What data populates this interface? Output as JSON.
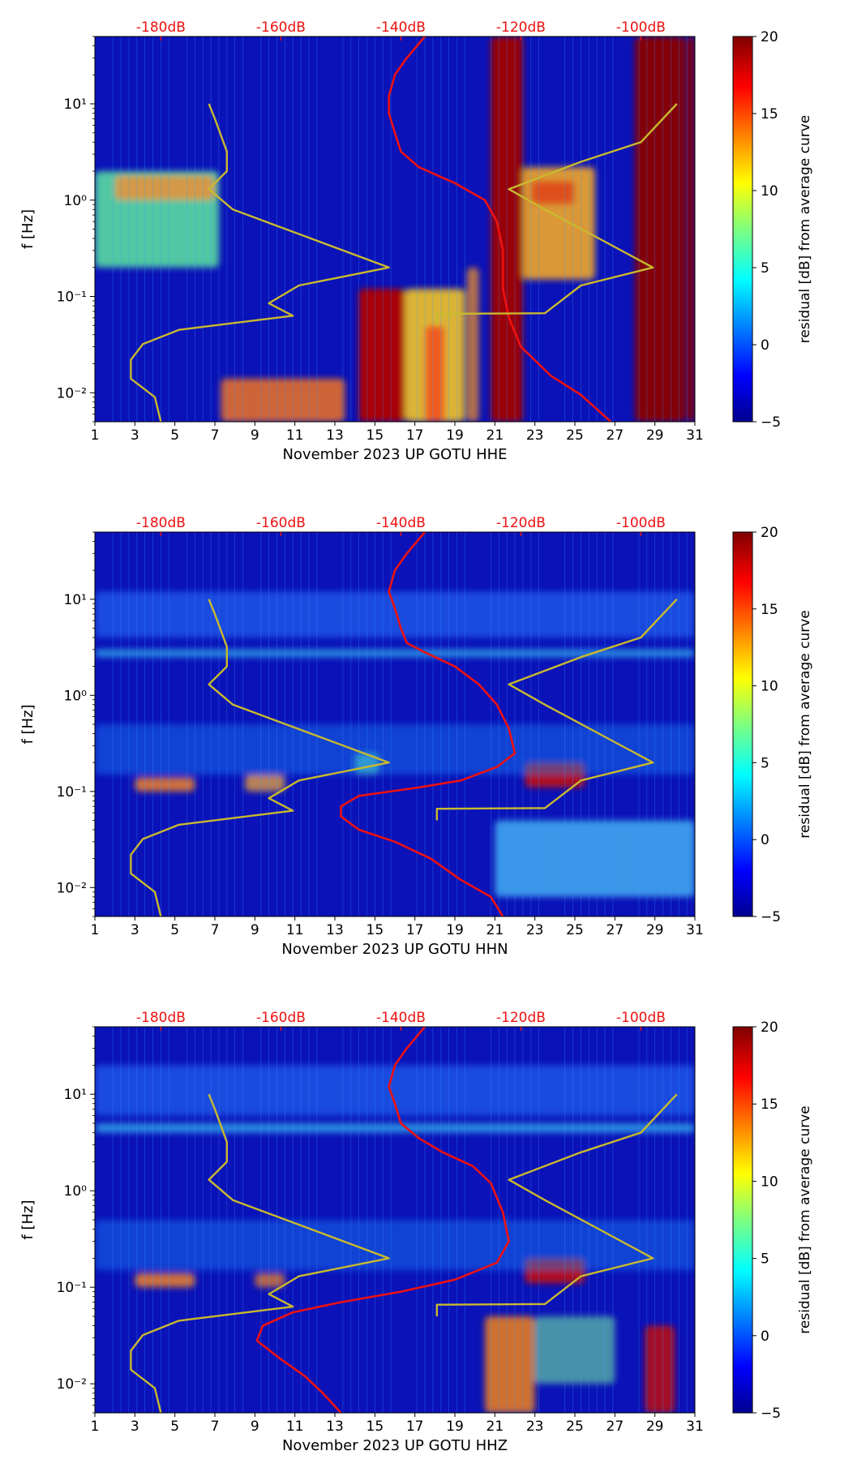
{
  "chart_data": [
    {
      "type": "heatmap",
      "station": "November 2023 UP GOTU  HHE",
      "xlabel": "November 2023 UP GOTU  HHE",
      "ylabel": "f [Hz]",
      "x_ticks": [
        "1",
        "3",
        "5",
        "7",
        "9",
        "11",
        "13",
        "15",
        "17",
        "19",
        "21",
        "23",
        "25",
        "27",
        "29",
        "31"
      ],
      "xlim": [
        1,
        31
      ],
      "y_ticks": [
        "10⁻²",
        "10⁻¹",
        "10⁰",
        "10¹"
      ],
      "y_tick_values": [
        0.01,
        0.1,
        1,
        10
      ],
      "ylim": [
        0.005,
        50
      ],
      "top_ticks": [
        "-180dB",
        "-160dB",
        "-140dB",
        "-120dB",
        "-100dB"
      ],
      "top_tick_values": [
        -180,
        -160,
        -140,
        -120,
        -100
      ],
      "top_xlim": [
        -191,
        -91
      ],
      "colorbar": {
        "label": "residual [dB] from average curve",
        "ticks": [
          "20",
          "15",
          "10",
          "5",
          "0",
          "−5"
        ],
        "tick_values": [
          20,
          15,
          10,
          5,
          0,
          -5
        ],
        "range": [
          -5,
          20
        ]
      },
      "series": [
        {
          "name": "median PSD (dB)",
          "color": "#ee1111",
          "points": [
            [
              -136,
              50
            ],
            [
              -139,
              30
            ],
            [
              -141,
              20
            ],
            [
              -142,
              12
            ],
            [
              -142,
              8
            ],
            [
              -141,
              5
            ],
            [
              -140,
              3.2
            ],
            [
              -137,
              2.2
            ],
            [
              -131,
              1.5
            ],
            [
              -126,
              1.0
            ],
            [
              -124,
              0.6
            ],
            [
              -123,
              0.3
            ],
            [
              -123,
              0.12
            ],
            [
              -122,
              0.06
            ],
            [
              -120,
              0.03
            ],
            [
              -115,
              0.015
            ],
            [
              -110,
              0.0095
            ],
            [
              -105,
              0.005
            ]
          ]
        },
        {
          "name": "NLNM / NHNM (dB)",
          "color": "#c9b92e",
          "points": [
            [
              -180,
              0.005
            ],
            [
              -181,
              0.009
            ],
            [
              -185,
              0.014
            ],
            [
              -185,
              0.022
            ],
            [
              -183,
              0.032
            ],
            [
              -177,
              0.045
            ],
            [
              -158,
              0.063
            ],
            [
              -162,
              0.085
            ],
            [
              -157,
              0.13
            ],
            [
              -142,
              0.2
            ],
            [
              -155,
              0.4
            ],
            [
              -168,
              0.8
            ],
            [
              -172,
              1.3
            ],
            [
              -169,
              2.0
            ],
            [
              -169,
              3.2
            ],
            [
              -171,
              7.0
            ],
            [
              -172,
              10.0
            ]
          ]
        },
        {
          "name": "NHNM (dB)",
          "color": "#c9b92e",
          "points": [
            [
              -134,
              0.05
            ],
            [
              -134,
              0.066
            ],
            [
              -116,
              0.067
            ],
            [
              -110,
              0.13
            ],
            [
              -98,
              0.2
            ],
            [
              -107,
              0.4
            ],
            [
              -116,
              0.8
            ],
            [
              -122,
              1.3
            ],
            [
              -110,
              2.5
            ],
            [
              -100,
              4.0
            ],
            [
              -94,
              10.0
            ]
          ]
        }
      ]
    },
    {
      "type": "heatmap",
      "station": "November 2023 UP GOTU  HHN",
      "xlabel": "November 2023 UP GOTU  HHN",
      "ylabel": "f [Hz]",
      "x_ticks": [
        "1",
        "3",
        "5",
        "7",
        "9",
        "11",
        "13",
        "15",
        "17",
        "19",
        "21",
        "23",
        "25",
        "27",
        "29",
        "31"
      ],
      "xlim": [
        1,
        31
      ],
      "y_ticks": [
        "10⁻²",
        "10⁻¹",
        "10⁰",
        "10¹"
      ],
      "y_tick_values": [
        0.01,
        0.1,
        1,
        10
      ],
      "ylim": [
        0.005,
        50
      ],
      "top_ticks": [
        "-180dB",
        "-160dB",
        "-140dB",
        "-120dB",
        "-100dB"
      ],
      "top_tick_values": [
        -180,
        -160,
        -140,
        -120,
        -100
      ],
      "top_xlim": [
        -191,
        -91
      ],
      "colorbar": {
        "label": "residual [dB] from average curve",
        "ticks": [
          "20",
          "15",
          "10",
          "5",
          "0",
          "−5"
        ],
        "tick_values": [
          20,
          15,
          10,
          5,
          0,
          -5
        ],
        "range": [
          -5,
          20
        ]
      },
      "series": [
        {
          "name": "median PSD (dB)",
          "color": "#ee1111",
          "points": [
            [
              -136,
              50
            ],
            [
              -139,
              30
            ],
            [
              -141,
              20
            ],
            [
              -142,
              12
            ],
            [
              -141,
              8
            ],
            [
              -140,
              5
            ],
            [
              -139,
              3.5
            ],
            [
              -136,
              2.8
            ],
            [
              -131,
              2.0
            ],
            [
              -127,
              1.3
            ],
            [
              -124,
              0.8
            ],
            [
              -122,
              0.45
            ],
            [
              -121,
              0.25
            ],
            [
              -124,
              0.18
            ],
            [
              -130,
              0.13
            ],
            [
              -137,
              0.11
            ],
            [
              -147,
              0.09
            ],
            [
              -150,
              0.07
            ],
            [
              -150,
              0.055
            ],
            [
              -147,
              0.04
            ],
            [
              -141,
              0.03
            ],
            [
              -135,
              0.02
            ],
            [
              -130,
              0.012
            ],
            [
              -125,
              0.008
            ],
            [
              -123,
              0.005
            ]
          ]
        },
        {
          "name": "NLNM / NHNM (dB)",
          "color": "#c9b92e",
          "points": [
            [
              -180,
              0.005
            ],
            [
              -181,
              0.009
            ],
            [
              -185,
              0.014
            ],
            [
              -185,
              0.022
            ],
            [
              -183,
              0.032
            ],
            [
              -177,
              0.045
            ],
            [
              -158,
              0.063
            ],
            [
              -162,
              0.085
            ],
            [
              -157,
              0.13
            ],
            [
              -142,
              0.2
            ],
            [
              -155,
              0.4
            ],
            [
              -168,
              0.8
            ],
            [
              -172,
              1.3
            ],
            [
              -169,
              2.0
            ],
            [
              -169,
              3.2
            ],
            [
              -171,
              7.0
            ],
            [
              -172,
              10.0
            ]
          ]
        },
        {
          "name": "NHNM (dB)",
          "color": "#c9b92e",
          "points": [
            [
              -134,
              0.05
            ],
            [
              -134,
              0.066
            ],
            [
              -116,
              0.067
            ],
            [
              -110,
              0.13
            ],
            [
              -98,
              0.2
            ],
            [
              -107,
              0.4
            ],
            [
              -116,
              0.8
            ],
            [
              -122,
              1.3
            ],
            [
              -110,
              2.5
            ],
            [
              -100,
              4.0
            ],
            [
              -94,
              10.0
            ]
          ]
        }
      ]
    },
    {
      "type": "heatmap",
      "station": "November 2023 UP GOTU  HHZ",
      "xlabel": "November 2023 UP GOTU  HHZ",
      "ylabel": "f [Hz]",
      "x_ticks": [
        "1",
        "3",
        "5",
        "7",
        "9",
        "11",
        "13",
        "15",
        "17",
        "19",
        "21",
        "23",
        "25",
        "27",
        "29",
        "31"
      ],
      "xlim": [
        1,
        31
      ],
      "y_ticks": [
        "10⁻²",
        "10⁻¹",
        "10⁰",
        "10¹"
      ],
      "y_tick_values": [
        0.01,
        0.1,
        1,
        10
      ],
      "ylim": [
        0.005,
        50
      ],
      "top_ticks": [
        "-180dB",
        "-160dB",
        "-140dB",
        "-120dB",
        "-100dB"
      ],
      "top_tick_values": [
        -180,
        -160,
        -140,
        -120,
        -100
      ],
      "top_xlim": [
        -191,
        -91
      ],
      "colorbar": {
        "label": "residual [dB] from average curve",
        "ticks": [
          "20",
          "15",
          "10",
          "5",
          "0",
          "−5"
        ],
        "tick_values": [
          20,
          15,
          10,
          5,
          0,
          -5
        ],
        "range": [
          -5,
          20
        ]
      },
      "series": [
        {
          "name": "median PSD (dB)",
          "color": "#ee1111",
          "points": [
            [
              -136,
              50
            ],
            [
              -139,
              30
            ],
            [
              -141,
              20
            ],
            [
              -142,
              12
            ],
            [
              -141,
              8
            ],
            [
              -140,
              5
            ],
            [
              -137,
              3.5
            ],
            [
              -133,
              2.5
            ],
            [
              -128,
              1.8
            ],
            [
              -125,
              1.2
            ],
            [
              -123,
              0.6
            ],
            [
              -122,
              0.3
            ],
            [
              -124,
              0.18
            ],
            [
              -131,
              0.12
            ],
            [
              -140,
              0.09
            ],
            [
              -150,
              0.07
            ],
            [
              -158,
              0.055
            ],
            [
              -163,
              0.04
            ],
            [
              -164,
              0.028
            ],
            [
              -160,
              0.018
            ],
            [
              -156,
              0.012
            ],
            [
              -153,
              0.008
            ],
            [
              -150,
              0.005
            ]
          ]
        },
        {
          "name": "NLNM / NHNM (dB)",
          "color": "#c9b92e",
          "points": [
            [
              -180,
              0.005
            ],
            [
              -181,
              0.009
            ],
            [
              -185,
              0.014
            ],
            [
              -185,
              0.022
            ],
            [
              -183,
              0.032
            ],
            [
              -177,
              0.045
            ],
            [
              -158,
              0.063
            ],
            [
              -162,
              0.085
            ],
            [
              -157,
              0.13
            ],
            [
              -142,
              0.2
            ],
            [
              -155,
              0.4
            ],
            [
              -168,
              0.8
            ],
            [
              -172,
              1.3
            ],
            [
              -169,
              2.0
            ],
            [
              -169,
              3.2
            ],
            [
              -171,
              7.0
            ],
            [
              -172,
              10.0
            ]
          ]
        },
        {
          "name": "NHNM (dB)",
          "color": "#c9b92e",
          "points": [
            [
              -134,
              0.05
            ],
            [
              -134,
              0.066
            ],
            [
              -116,
              0.067
            ],
            [
              -110,
              0.13
            ],
            [
              -98,
              0.2
            ],
            [
              -107,
              0.4
            ],
            [
              -116,
              0.8
            ],
            [
              -122,
              1.3
            ],
            [
              -110,
              2.5
            ],
            [
              -100,
              4.0
            ],
            [
              -94,
              10.0
            ]
          ]
        }
      ]
    }
  ]
}
